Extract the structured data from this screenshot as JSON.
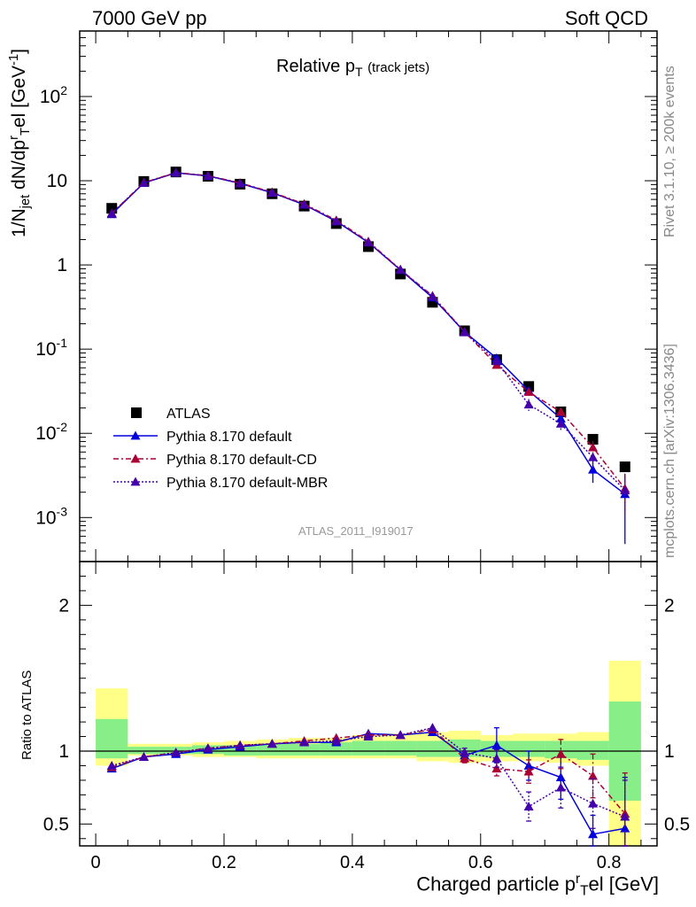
{
  "header": {
    "left": "7000 GeV pp",
    "right": "Soft QCD"
  },
  "side_labels": {
    "rivet": "Rivet 3.1.10, ≥ 200k events",
    "mcplots": "mcplots.cern.ch [arXiv:1306.3436]"
  },
  "plot": {
    "title": "Relative p",
    "title_sub": "T",
    "title_suffix": "(track jets)",
    "analysis_id": "ATLAS_2011_I919017",
    "ylabel_main": "1/N",
    "ylabel_sub1": "jet",
    "ylabel_mid": " dN/dp",
    "ylabel_sup": "r",
    "ylabel_sub2": "T",
    "ylabel_end": "el [GeV",
    "ylabel_exp": "-1",
    "ylabel_close": "]",
    "ylabel_ratio": "Ratio to ATLAS",
    "xlabel": "Charged particle p",
    "xlabel_sup": "r",
    "xlabel_sub": "T",
    "xlabel_end": "el [GeV]"
  },
  "colors": {
    "atlas": "#000000",
    "default": "#0000dd",
    "cd": "#aa0033",
    "mbr": "#4400aa",
    "band_outer": "#ffff88",
    "band_inner": "#88ee88"
  },
  "chart_data": {
    "type": "line",
    "x": [
      0.025,
      0.075,
      0.125,
      0.175,
      0.225,
      0.275,
      0.325,
      0.375,
      0.425,
      0.475,
      0.525,
      0.575,
      0.625,
      0.675,
      0.725,
      0.775,
      0.825
    ],
    "bin_edges": [
      0.0,
      0.05,
      0.1,
      0.15,
      0.2,
      0.25,
      0.3,
      0.35,
      0.4,
      0.45,
      0.5,
      0.55,
      0.6,
      0.65,
      0.7,
      0.75,
      0.8,
      0.85
    ],
    "xlim": [
      -0.025,
      0.875
    ],
    "main": {
      "yscale": "log",
      "ylim": [
        0.0003,
        600
      ],
      "ytick_labels": [
        "10^-3",
        "10^-2",
        "10^-1",
        "1",
        "10",
        "10^2"
      ]
    },
    "ratio": {
      "ylim": [
        0.35,
        2.3
      ],
      "ytick_labels": [
        "0.5",
        "1",
        "2"
      ],
      "band_outer": [
        [
          0.9,
          1.43
        ],
        [
          0.97,
          1.05
        ],
        [
          0.97,
          1.05
        ],
        [
          0.96,
          1.06
        ],
        [
          0.96,
          1.07
        ],
        [
          0.95,
          1.08
        ],
        [
          0.95,
          1.09
        ],
        [
          0.95,
          1.09
        ],
        [
          0.95,
          1.11
        ],
        [
          0.95,
          1.12
        ],
        [
          0.93,
          1.13
        ],
        [
          0.92,
          1.14
        ],
        [
          0.93,
          1.11
        ],
        [
          0.93,
          1.12
        ],
        [
          0.92,
          1.12
        ],
        [
          0.9,
          1.13
        ],
        [
          0.35,
          1.62
        ]
      ],
      "band_inner": [
        [
          0.95,
          1.22
        ],
        [
          0.98,
          1.03
        ],
        [
          0.98,
          1.03
        ],
        [
          0.98,
          1.04
        ],
        [
          0.97,
          1.04
        ],
        [
          0.97,
          1.05
        ],
        [
          0.97,
          1.05
        ],
        [
          0.97,
          1.06
        ],
        [
          0.97,
          1.07
        ],
        [
          0.97,
          1.07
        ],
        [
          0.96,
          1.07
        ],
        [
          0.96,
          1.08
        ],
        [
          0.96,
          1.07
        ],
        [
          0.96,
          1.07
        ],
        [
          0.95,
          1.07
        ],
        [
          0.94,
          1.07
        ],
        [
          0.66,
          1.34
        ]
      ]
    },
    "series": [
      {
        "name": "ATLAS",
        "style": "data",
        "values": [
          4.7,
          9.8,
          12.7,
          11.3,
          9.1,
          7.0,
          5.0,
          3.1,
          1.65,
          0.78,
          0.36,
          0.165,
          0.075,
          0.036,
          0.018,
          0.0085,
          0.004
        ]
      },
      {
        "name": "Pythia 8.170 default",
        "style": "solid",
        "values": [
          4.0,
          9.4,
          12.4,
          11.4,
          9.3,
          7.2,
          5.2,
          3.3,
          1.85,
          0.87,
          0.41,
          0.16,
          0.078,
          0.032,
          0.015,
          0.0037,
          0.0019
        ],
        "ratio": [
          0.88,
          0.96,
          0.98,
          1.01,
          1.03,
          1.05,
          1.06,
          1.06,
          1.12,
          1.11,
          1.13,
          0.97,
          1.04,
          0.9,
          0.82,
          0.43,
          0.47
        ],
        "ratio_err": [
          0,
          0,
          0,
          0,
          0,
          0,
          0,
          0,
          0,
          0,
          0,
          0.03,
          0.12,
          0.1,
          0.15,
          0.13,
          0.35
        ]
      },
      {
        "name": "Pythia 8.170 default-CD",
        "style": "dashdot",
        "values": [
          4.1,
          9.5,
          12.5,
          11.5,
          9.4,
          7.3,
          5.3,
          3.4,
          1.9,
          0.88,
          0.43,
          0.16,
          0.065,
          0.031,
          0.018,
          0.0068,
          0.0022
        ],
        "ratio": [
          0.89,
          0.96,
          0.99,
          1.02,
          1.04,
          1.05,
          1.07,
          1.09,
          1.11,
          1.11,
          1.15,
          0.95,
          0.88,
          0.86,
          0.98,
          0.83,
          0.57
        ],
        "ratio_err": [
          0,
          0,
          0,
          0,
          0,
          0,
          0,
          0,
          0,
          0,
          0,
          0.03,
          0.05,
          0.08,
          0.1,
          0.15,
          0.28
        ]
      },
      {
        "name": "Pythia 8.170 default-MBR",
        "style": "dotted",
        "values": [
          4.1,
          9.4,
          12.4,
          11.4,
          9.3,
          7.2,
          5.2,
          3.3,
          1.85,
          0.88,
          0.42,
          0.158,
          0.072,
          0.022,
          0.013,
          0.0052,
          0.0021
        ],
        "ratio": [
          0.9,
          0.96,
          0.99,
          1.02,
          1.04,
          1.05,
          1.06,
          1.07,
          1.1,
          1.11,
          1.16,
          0.99,
          0.95,
          0.62,
          0.75,
          0.64,
          0.55
        ],
        "ratio_err": [
          0,
          0,
          0,
          0,
          0,
          0,
          0,
          0,
          0,
          0,
          0,
          0.03,
          0.06,
          0.1,
          0.14,
          0.17,
          0.25
        ]
      }
    ],
    "legend_position": "lower-left",
    "xtick_labels": [
      "0",
      "0.2",
      "0.4",
      "0.6",
      "0.8"
    ]
  }
}
